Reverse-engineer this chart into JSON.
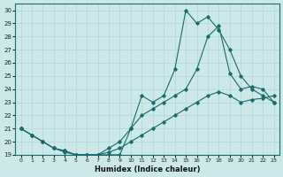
{
  "xlabel": "Humidex (Indice chaleur)",
  "bg_color": "#cce8e8",
  "line_color": "#1a6b6b",
  "grid_color": "#b0d8d8",
  "xlim": [
    -0.5,
    23.5
  ],
  "ylim": [
    19,
    30.5
  ],
  "xticks": [
    0,
    1,
    2,
    3,
    4,
    5,
    6,
    7,
    8,
    9,
    10,
    11,
    12,
    13,
    14,
    15,
    16,
    17,
    18,
    19,
    20,
    21,
    22,
    23
  ],
  "yticks": [
    19,
    20,
    21,
    22,
    23,
    24,
    25,
    26,
    27,
    28,
    29,
    30
  ],
  "line1_x": [
    0,
    1,
    2,
    3,
    4,
    5,
    6,
    7,
    8,
    9,
    10,
    11,
    12,
    13,
    14,
    15,
    16,
    17,
    18,
    19,
    20,
    21,
    22,
    23
  ],
  "line1_y": [
    21,
    20.5,
    20,
    19.5,
    19.3,
    19.0,
    19.0,
    19.0,
    19.0,
    19.0,
    21.0,
    23.5,
    23.0,
    23.5,
    25.5,
    30.0,
    29.0,
    29.5,
    28.5,
    27.0,
    25.0,
    24.0,
    23.5,
    23.0
  ],
  "line2_x": [
    0,
    1,
    2,
    3,
    4,
    5,
    6,
    7,
    8,
    9,
    10,
    11,
    12,
    13,
    14,
    15,
    16,
    17,
    18,
    19,
    20,
    21,
    22,
    23
  ],
  "line2_y": [
    21,
    20.5,
    20,
    19.5,
    19.3,
    19.0,
    19.0,
    19.0,
    19.5,
    20.0,
    21.0,
    22.0,
    22.5,
    23.0,
    23.5,
    24.0,
    25.5,
    28.0,
    28.8,
    25.2,
    24.0,
    24.2,
    24.0,
    23.0
  ],
  "line3_x": [
    0,
    1,
    2,
    3,
    4,
    5,
    6,
    7,
    8,
    9,
    10,
    11,
    12,
    13,
    14,
    15,
    16,
    17,
    18,
    19,
    20,
    21,
    22,
    23
  ],
  "line3_y": [
    21,
    20.5,
    20.0,
    19.5,
    19.2,
    19.0,
    19.0,
    19.0,
    19.2,
    19.5,
    20.0,
    20.5,
    21.0,
    21.5,
    22.0,
    22.5,
    23.0,
    23.5,
    23.8,
    23.5,
    23.0,
    23.2,
    23.3,
    23.5
  ]
}
